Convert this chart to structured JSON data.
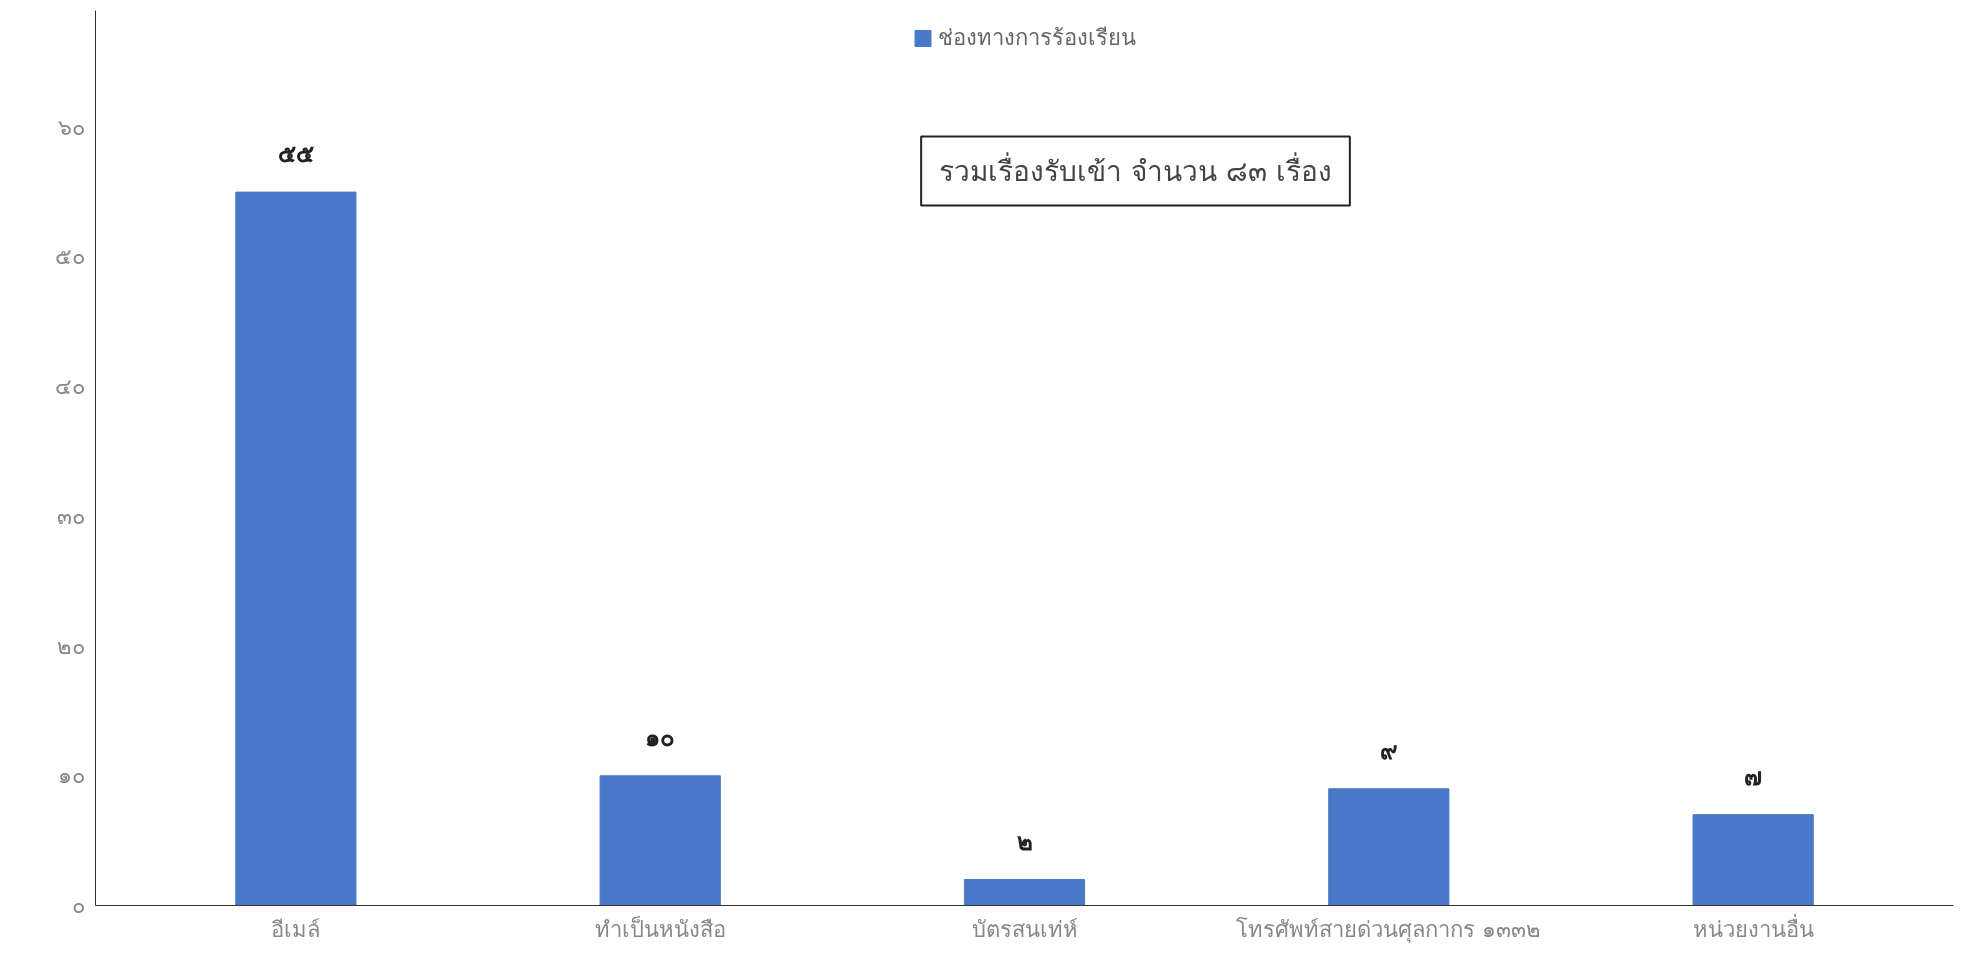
{
  "chart_data": {
    "type": "bar",
    "categories": [
      "อีเมล์",
      "ทำเป็นหนังสือ",
      "บัตรสนเท่ห์",
      "โทรศัพท์สายด่วนศุลกากร ๑๓๓๒",
      "หน่วยงานอื่น"
    ],
    "series": [
      {
        "name": "ช่องทางการร้องเรียน",
        "color": "#4a78c8",
        "values": [
          55,
          10,
          2,
          9,
          7
        ],
        "value_labels": [
          "๕๕",
          "๑๐",
          "๒",
          "๙",
          "๗"
        ]
      }
    ],
    "ylim": [
      0,
      69
    ],
    "yticks": [
      {
        "value": 0,
        "label": "๐"
      },
      {
        "value": 10,
        "label": "๑๐"
      },
      {
        "value": 20,
        "label": "๒๐"
      },
      {
        "value": 30,
        "label": "๓๐"
      },
      {
        "value": 40,
        "label": "๔๐"
      },
      {
        "value": 50,
        "label": "๕๐"
      },
      {
        "value": 60,
        "label": "๖๐"
      }
    ],
    "annotations": [
      "รวมเรื่องรับเข้า จำนวน ๘๓ เรื่อง"
    ],
    "legend": "top",
    "grid": false
  }
}
